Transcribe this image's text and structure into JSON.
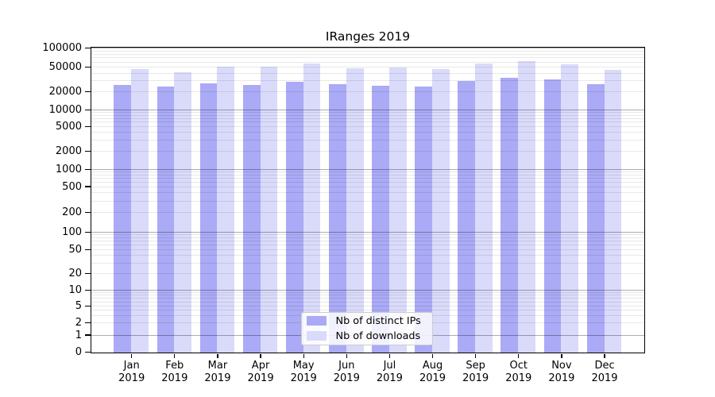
{
  "title": "IRanges 2019",
  "legend": {
    "items": [
      {
        "label": "Nb of distinct IPs",
        "color": "#aaaaf6"
      },
      {
        "label": "Nb of downloads",
        "color": "#dadafa"
      }
    ]
  },
  "colors": {
    "bar_distinct_ips": "#aaaaf6",
    "bar_downloads": "#dadafa",
    "grid_major": "rgba(0,0,0,0.32)",
    "grid_minor": "rgba(0,0,0,0.09)",
    "spine": "#000000"
  },
  "axes": {
    "y_tick_values": [
      0,
      1,
      2,
      5,
      10,
      20,
      50,
      100,
      200,
      500,
      1000,
      2000,
      5000,
      10000,
      20000,
      50000,
      100000
    ],
    "x_year_line": "2019"
  },
  "chart_data": {
    "type": "bar",
    "title": "IRanges 2019",
    "categories": [
      "Jan 2019",
      "Feb 2019",
      "Mar 2019",
      "Apr 2019",
      "May 2019",
      "Jun 2019",
      "Jul 2019",
      "Aug 2019",
      "Sep 2019",
      "Oct 2019",
      "Nov 2019",
      "Dec 2019"
    ],
    "months_short": [
      "Jan",
      "Feb",
      "Mar",
      "Apr",
      "May",
      "Jun",
      "Jul",
      "Aug",
      "Sep",
      "Oct",
      "Nov",
      "Dec"
    ],
    "year": "2019",
    "series": [
      {
        "name": "Nb of distinct IPs",
        "color": "#aaaaf6",
        "values": [
          25200,
          24000,
          26500,
          25700,
          28900,
          26300,
          24500,
          24000,
          29800,
          32900,
          31000,
          26000
        ]
      },
      {
        "name": "Nb of downloads",
        "color": "#dadafa",
        "values": [
          46000,
          41200,
          49700,
          50700,
          55800,
          47800,
          48100,
          46400,
          55800,
          61600,
          55300,
          45000
        ]
      }
    ],
    "yscale": "symlog",
    "ylim": [
      0,
      100000
    ],
    "y_ticks": [
      0,
      1,
      2,
      5,
      10,
      20,
      50,
      100,
      200,
      500,
      1000,
      2000,
      5000,
      10000,
      20000,
      50000,
      100000
    ],
    "grid": true,
    "grid_major_at": [
      1,
      10,
      100,
      1000,
      10000,
      100000
    ],
    "legend_position": "lower center"
  }
}
